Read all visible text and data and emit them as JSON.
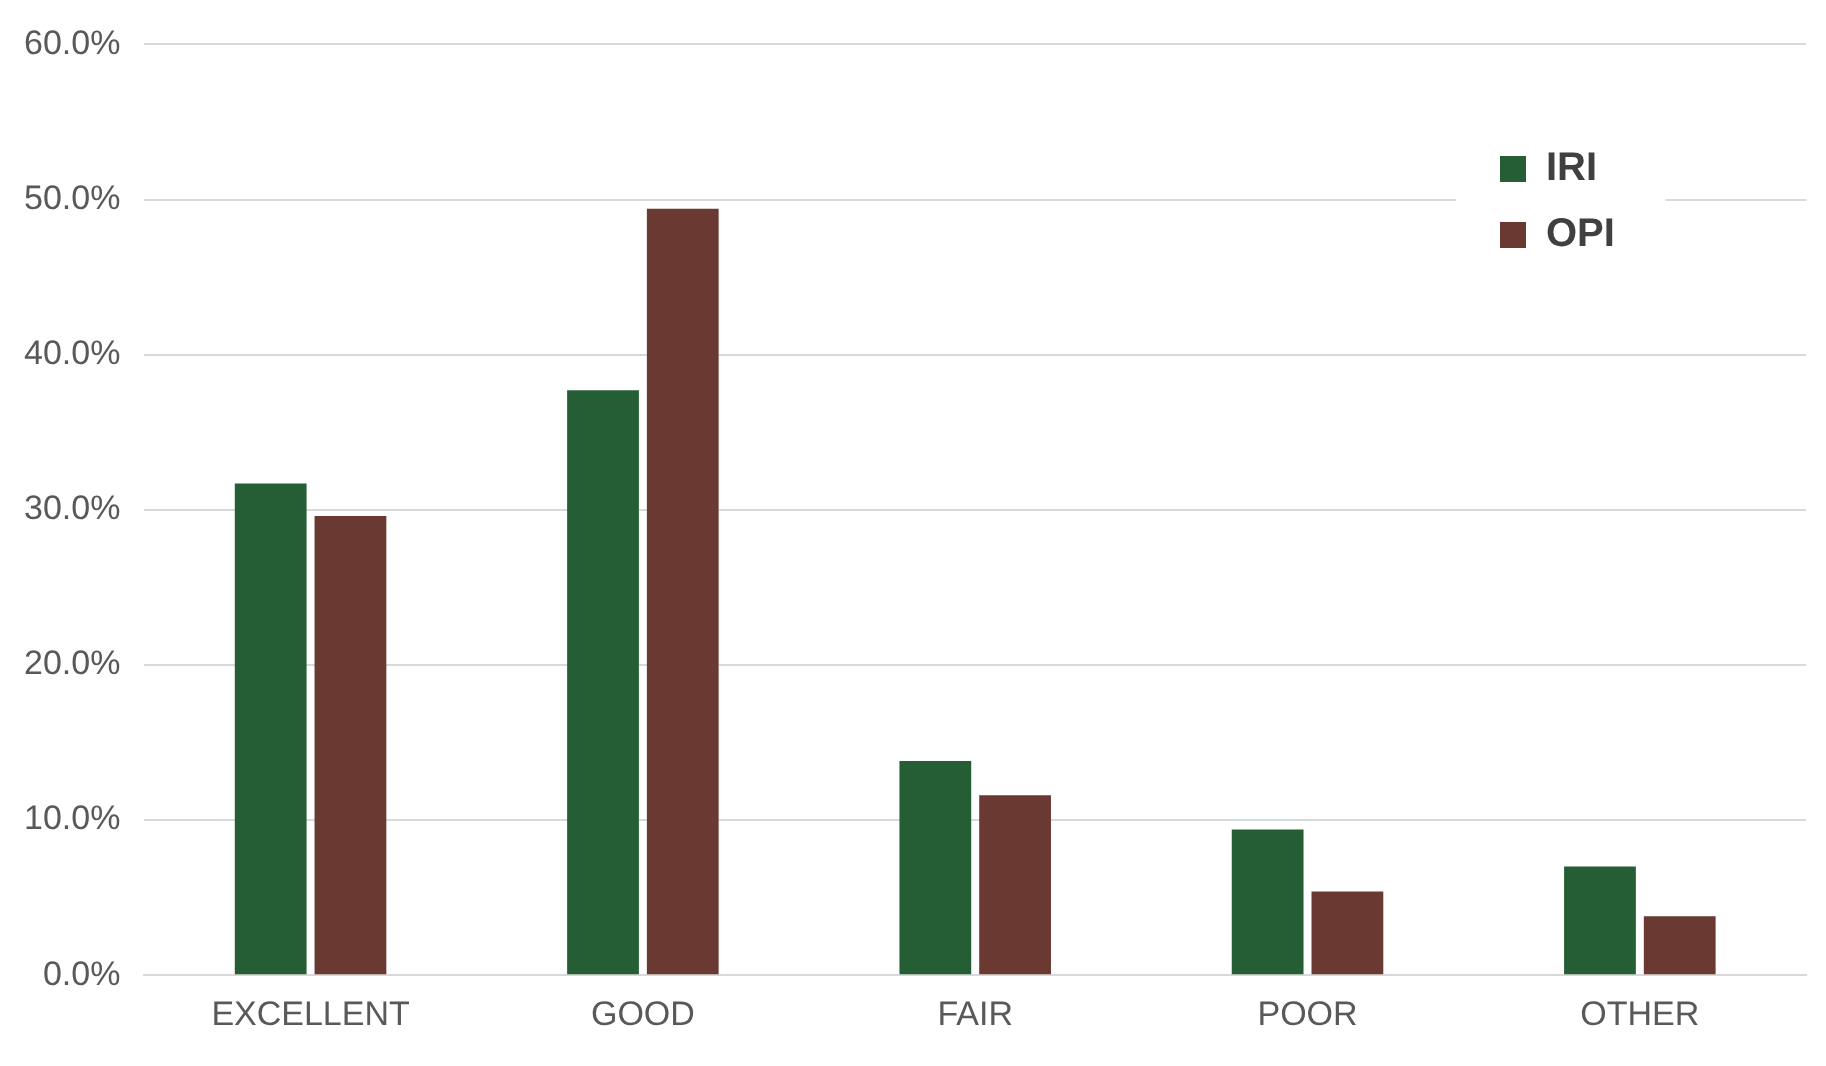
{
  "chart_data": {
    "type": "bar",
    "categories": [
      "EXCELLENT",
      "GOOD",
      "FAIR",
      "POOR",
      "OTHER"
    ],
    "series": [
      {
        "name": "IRI",
        "color": "#255e35",
        "values": [
          31.7,
          37.7,
          13.8,
          9.4,
          7.0
        ]
      },
      {
        "name": "OPI",
        "color": "#6a3a32",
        "values": [
          29.6,
          49.4,
          11.6,
          5.4,
          3.8
        ]
      }
    ],
    "ylim": [
      0,
      60
    ],
    "yticks": [
      {
        "value": 0,
        "label": "0.0%"
      },
      {
        "value": 10,
        "label": "10.0%"
      },
      {
        "value": 20,
        "label": "20.0%"
      },
      {
        "value": 30,
        "label": "30.0%"
      },
      {
        "value": 40,
        "label": "40.0%"
      },
      {
        "value": 50,
        "label": "50.0%"
      },
      {
        "value": 60,
        "label": "60.0%"
      }
    ],
    "grid": "y",
    "legend": "top right"
  }
}
